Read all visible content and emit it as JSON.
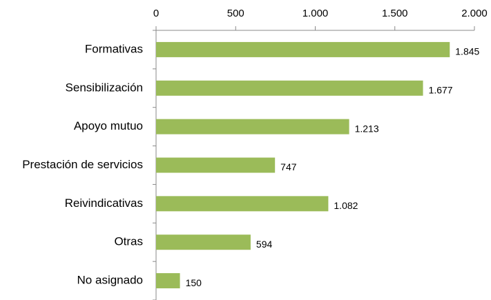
{
  "chart_data": {
    "type": "bar",
    "orientation": "horizontal",
    "categories": [
      "Formativas",
      "Sensibilización",
      "Apoyo mutuo",
      "Prestación de servicios",
      "Reivindicativas",
      "Otras",
      "No asignado"
    ],
    "values": [
      1845,
      1677,
      1213,
      747,
      1082,
      594,
      150
    ],
    "value_labels": [
      "1.845",
      "1.677",
      "1.213",
      "747",
      "1.082",
      "594",
      "150"
    ],
    "color": "#9bbb59",
    "xlim": [
      0,
      2000
    ],
    "xticks": [
      0,
      500,
      {
        "value": 1000,
        "label": "1.000"
      },
      {
        "value": 1500,
        "label": "1.500"
      },
      {
        "value": 2000,
        "label": "2.000"
      }
    ],
    "grid": false
  }
}
